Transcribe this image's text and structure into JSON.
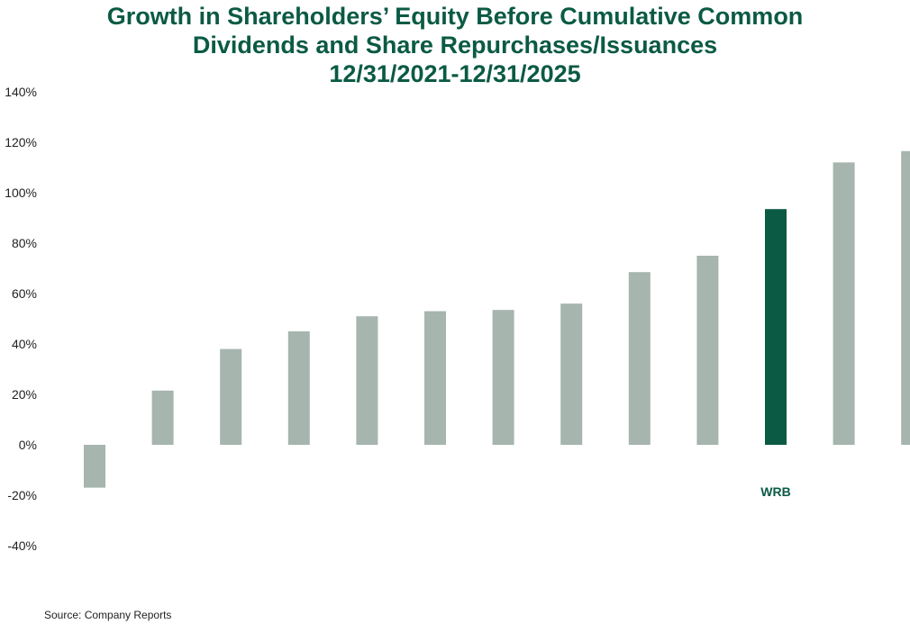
{
  "chart_data": {
    "type": "bar",
    "title_lines": [
      "Growth in Shareholders’ Equity Before Cumulative Common",
      "Dividends and Share Repurchases/Issuances",
      "12/31/2021-12/31/2025"
    ],
    "xlabel": "",
    "ylabel": "",
    "ylim": [
      -40,
      140
    ],
    "yticks": [
      140,
      120,
      100,
      80,
      60,
      40,
      20,
      0,
      -20,
      -40
    ],
    "ytick_suffix": "%",
    "grid": false,
    "legend": "none",
    "bar_labels": [
      "",
      "",
      "",
      "",
      "",
      "",
      "",
      "",
      "",
      "",
      "WRB",
      "",
      ""
    ],
    "values": [
      -17,
      21.5,
      38,
      45,
      51,
      53,
      53.5,
      56,
      68.5,
      75,
      93.5,
      112,
      116.5
    ],
    "highlight_index": 10
  },
  "colors": {
    "title": "#0b5a44",
    "bar_default": "#a6b5ae",
    "bar_highlight": "#0b5a44",
    "tick_text": "#222222"
  },
  "source": "Source: Company Reports"
}
